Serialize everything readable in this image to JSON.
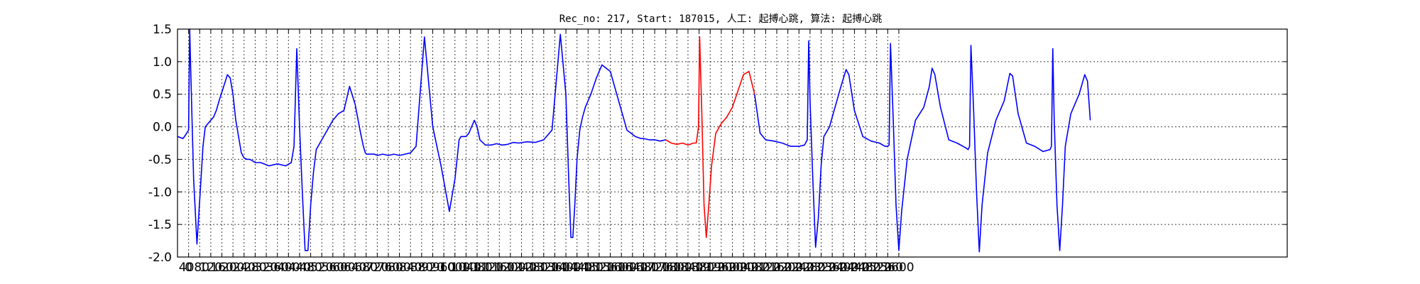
{
  "chart_data": {
    "type": "line",
    "title": "Rec_no: 217, Start: 187015, 人工: 起搏心跳, 算法: 起搏心跳",
    "xlabel": "",
    "ylabel": "",
    "xlim": [
      0,
      4000
    ],
    "ylim": [
      -2.0,
      1.5
    ],
    "grid": true,
    "legend": "none",
    "colors": {
      "normal": "#0000ff",
      "highlight": "#ff0000"
    },
    "yticks": [
      "1.5",
      "1.0",
      "0.5",
      "0.0",
      "-0.5",
      "-1.0",
      "-1.5",
      "-2.0"
    ],
    "xtick_values": [
      0,
      40,
      80,
      120,
      160,
      200,
      240,
      280,
      320,
      360,
      400,
      440,
      480,
      520,
      560,
      600,
      640,
      680,
      720,
      760,
      800,
      840,
      880,
      920,
      960,
      1000,
      1040,
      1080,
      1120,
      1160,
      1200,
      1240,
      1280,
      1320,
      1360,
      1400,
      1440,
      1480,
      1520,
      1560,
      1600,
      1640,
      1680,
      1720,
      1760,
      1800,
      1840,
      1880,
      1920,
      1960,
      2000,
      2040,
      2080,
      2120,
      2160,
      2200,
      2240,
      2280,
      2320,
      2360,
      2400,
      2440,
      2480,
      2520,
      2560,
      2600
    ],
    "xticks_visible_text": [
      "0",
      "4080",
      "120",
      "160",
      "200",
      "240",
      "280",
      "320",
      "360",
      "400",
      "440",
      "480",
      "520",
      "560",
      "600",
      "640",
      "680",
      "720",
      "760",
      "800",
      "840",
      "880",
      "920",
      "960",
      "1000",
      "1040",
      "1080",
      "1120",
      "1160",
      "1200",
      "1240",
      "1280",
      "1320",
      "1360",
      "1400",
      "1440",
      "1480",
      "1520",
      "1560",
      "1600",
      "1640",
      "1680",
      "1720",
      "1760",
      "1800",
      "1840",
      "1880",
      "1920",
      "1960",
      "2000",
      "2040",
      "2080",
      "2120",
      "2160",
      "2200",
      "2240",
      "2280",
      "2320",
      "2360",
      "2400",
      "2440",
      "2480",
      "2520",
      "2560",
      "2600"
    ],
    "series": [
      {
        "color": "#0000ff",
        "x": [
          0,
          20,
          30,
          40,
          44,
          48,
          58,
          70,
          82,
          92,
          100,
          110,
          120,
          130,
          140,
          150,
          165,
          180,
          190,
          200,
          210,
          220,
          230,
          240,
          250,
          260,
          270,
          280,
          300,
          330,
          360,
          390,
          410,
          420,
          430,
          440,
          450,
          460,
          470,
          480,
          490,
          500,
          520,
          540,
          560,
          580,
          600,
          620,
          640,
          660,
          670,
          677,
          682,
          690,
          700,
          710,
          720,
          740,
          760,
          780,
          800,
          820,
          840,
          860,
          890,
          920,
          950,
          980,
          1000,
          1010,
          1015,
          1022,
          1030,
          1040,
          1050,
          1060,
          1070,
          1080,
          1090,
          1110,
          1130,
          1150,
          1170,
          1190,
          1210,
          1230,
          1260,
          1290,
          1320,
          1350,
          1380,
          1400,
          1410,
          1418,
          1425,
          1432,
          1440,
          1450,
          1460,
          1470,
          1490,
          1510,
          1530,
          1560,
          1590,
          1620,
          1650,
          1670,
          1680,
          1700,
          1720,
          1740,
          1760
        ],
        "y": [
          -0.15,
          -0.18,
          -0.12,
          -0.05,
          1.5,
          0.8,
          -0.8,
          -1.8,
          -1.0,
          -0.3,
          0.0,
          0.05,
          0.1,
          0.15,
          0.25,
          0.4,
          0.6,
          0.8,
          0.75,
          0.5,
          0.1,
          -0.15,
          -0.4,
          -0.48,
          -0.5,
          -0.5,
          -0.52,
          -0.55,
          -0.55,
          -0.6,
          -0.57,
          -0.6,
          -0.55,
          -0.3,
          1.2,
          0.0,
          -1.0,
          -1.9,
          -1.9,
          -1.2,
          -0.7,
          -0.35,
          -0.2,
          -0.05,
          0.1,
          0.2,
          0.25,
          0.62,
          0.35,
          -0.1,
          -0.3,
          -0.4,
          -0.42,
          -0.42,
          -0.42,
          -0.42,
          -0.44,
          -0.42,
          -0.44,
          -0.42,
          -0.44,
          -0.42,
          -0.4,
          -0.3,
          1.38,
          0.0,
          -0.6,
          -1.3,
          -0.8,
          -0.4,
          -0.2,
          -0.15,
          -0.15,
          -0.15,
          -0.1,
          0.0,
          0.1,
          0.0,
          -0.2,
          -0.28,
          -0.28,
          -0.26,
          -0.28,
          -0.27,
          -0.24,
          -0.25,
          -0.23,
          -0.24,
          -0.2,
          -0.05,
          1.42,
          0.5,
          -0.8,
          -1.7,
          -1.7,
          -1.2,
          -0.5,
          -0.05,
          0.15,
          0.3,
          0.5,
          0.75,
          0.95,
          0.85,
          0.4,
          -0.05,
          -0.15,
          -0.18,
          -0.18,
          -0.2,
          -0.2,
          -0.22,
          -0.2
        ]
      },
      {
        "color": "#ff0000",
        "x": [
          1760,
          1780,
          1800,
          1820,
          1840,
          1860,
          1870,
          1878,
          1882,
          1890,
          1898,
          1906,
          1915,
          1925,
          1940,
          1960,
          1980,
          2000,
          2020,
          2040,
          2060,
          2080
        ],
        "y": [
          -0.2,
          -0.25,
          -0.27,
          -0.25,
          -0.28,
          -0.25,
          -0.25,
          0.0,
          1.38,
          0.2,
          -1.2,
          -1.7,
          -1.2,
          -0.6,
          -0.1,
          0.05,
          0.15,
          0.3,
          0.55,
          0.8,
          0.85,
          0.5
        ]
      },
      {
        "color": "#0000ff",
        "x": [
          2080,
          2100,
          2120,
          2150,
          2180,
          2210,
          2240,
          2260,
          2270,
          2275,
          2280,
          2290,
          2300,
          2310,
          2320,
          2330,
          2350,
          2370,
          2390,
          2410,
          2420,
          2440,
          2470,
          2500,
          2530,
          2550,
          2560,
          2565,
          2570,
          2580,
          2590,
          2600,
          2610,
          2630,
          2660,
          2690,
          2710,
          2720,
          2730,
          2750,
          2780,
          2810,
          2840,
          2850,
          2855,
          2860,
          2870,
          2880,
          2890,
          2900,
          2920,
          2950,
          2980,
          3000,
          3010,
          3030,
          3060,
          3090,
          3120,
          3145,
          3150,
          3155,
          3160,
          3170,
          3180,
          3190,
          3200,
          3220,
          3250,
          3270,
          3280,
          3290
        ],
        "y": [
          0.5,
          -0.1,
          -0.2,
          -0.22,
          -0.25,
          -0.3,
          -0.3,
          -0.28,
          -0.2,
          1.32,
          0.4,
          -0.8,
          -1.85,
          -1.4,
          -0.6,
          -0.15,
          0.0,
          0.3,
          0.6,
          0.88,
          0.8,
          0.25,
          -0.15,
          -0.22,
          -0.25,
          -0.3,
          -0.3,
          -0.28,
          1.28,
          0.1,
          -1.2,
          -1.9,
          -1.3,
          -0.5,
          0.1,
          0.3,
          0.62,
          0.9,
          0.8,
          0.3,
          -0.2,
          -0.25,
          -0.32,
          -0.35,
          -0.3,
          1.25,
          0.2,
          -1.0,
          -1.92,
          -1.2,
          -0.4,
          0.1,
          0.4,
          0.82,
          0.78,
          0.2,
          -0.25,
          -0.3,
          -0.38,
          -0.35,
          -0.3,
          1.2,
          0.1,
          -1.2,
          -1.9,
          -1.2,
          -0.3,
          0.2,
          0.5,
          0.8,
          0.7,
          0.1
        ]
      }
    ]
  }
}
